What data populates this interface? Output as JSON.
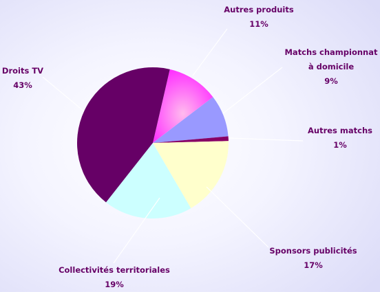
{
  "chart_data": {
    "type": "pie",
    "categories": [
      "Autres produits",
      "Matchs championnat à domicile",
      "Autres matchs",
      "Sponsors publicités",
      "Collectivités territoriales",
      "Droits TV"
    ],
    "values": [
      11,
      9,
      1,
      17,
      19,
      43
    ],
    "value_labels": [
      "11%",
      "9%",
      "1%",
      "17%",
      "19%",
      "43%"
    ],
    "colors": [
      "#ff55ff",
      "#9999ff",
      "#880066",
      "#ffffcc",
      "#ccffff",
      "#660066"
    ]
  }
}
